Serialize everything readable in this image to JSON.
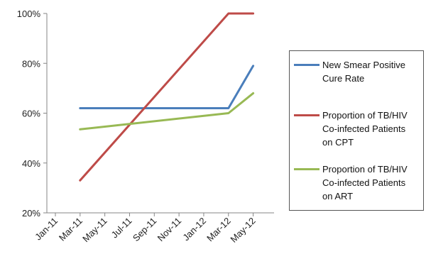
{
  "chart_data": {
    "type": "line",
    "categories": [
      "Jan-11",
      "Mar-11",
      "May-11",
      "Jul-11",
      "Sep-11",
      "Nov-11",
      "Jan-12",
      "Mar-12",
      "May-12"
    ],
    "y_tick_labels": [
      "20%",
      "40%",
      "60%",
      "80%",
      "100%"
    ],
    "ylim": [
      20,
      100
    ],
    "xlim_month_index": [
      0,
      17
    ],
    "grid": false,
    "legend_position": "right",
    "series": [
      {
        "name": "New Smear Positive Cure Rate",
        "color": "#4a7ebb",
        "points": [
          {
            "x": "Mar-11",
            "y": 62
          },
          {
            "x": "Mar-12",
            "y": 62
          },
          {
            "x": "May-12",
            "y": 79
          }
        ]
      },
      {
        "name": "Proportion of TB/HIV Co-infected Patients on CPT",
        "color": "#be4b48",
        "points": [
          {
            "x": "Mar-11",
            "y": 33
          },
          {
            "x": "Mar-12",
            "y": 100
          },
          {
            "x": "May-12",
            "y": 100
          }
        ]
      },
      {
        "name": "Proportion of TB/HIV Co-infected Patients on ART",
        "color": "#98b954",
        "points": [
          {
            "x": "Mar-11",
            "y": 53.5
          },
          {
            "x": "Mar-12",
            "y": 60
          },
          {
            "x": "May-12",
            "y": 68
          }
        ]
      }
    ]
  },
  "legend": {
    "items": [
      {
        "label_lines": [
          "New Smear Positive",
          "Cure Rate"
        ],
        "color": "#4a7ebb"
      },
      {
        "label_lines": [
          "Proportion of TB/HIV",
          "Co-infected Patients",
          "on CPT"
        ],
        "color": "#be4b48"
      },
      {
        "label_lines": [
          "Proportion of TB/HIV",
          "Co-infected Patients",
          "on ART"
        ],
        "color": "#98b954"
      }
    ]
  }
}
